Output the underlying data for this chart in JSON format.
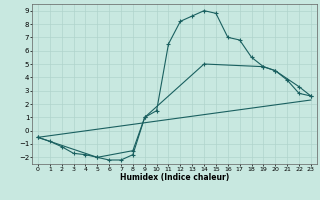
{
  "bg_color": "#c8e8e0",
  "grid_color": "#b0d4cc",
  "line_color": "#1a6060",
  "xlabel": "Humidex (Indice chaleur)",
  "xlim": [
    -0.5,
    23.5
  ],
  "ylim": [
    -2.5,
    9.5
  ],
  "yticks": [
    -2,
    -1,
    0,
    1,
    2,
    3,
    4,
    5,
    6,
    7,
    8,
    9
  ],
  "xticks": [
    0,
    1,
    2,
    3,
    4,
    5,
    6,
    7,
    8,
    9,
    10,
    11,
    12,
    13,
    14,
    15,
    16,
    17,
    18,
    19,
    20,
    21,
    22,
    23
  ],
  "line1_x": [
    0,
    1,
    2,
    3,
    4,
    5,
    6,
    7,
    8,
    9,
    10,
    11,
    12,
    13,
    14,
    15,
    16,
    17,
    18,
    19,
    20,
    21,
    22,
    23
  ],
  "line1_y": [
    -0.5,
    -0.8,
    -1.2,
    -1.7,
    -1.8,
    -2.0,
    -2.2,
    -2.2,
    -1.8,
    1.0,
    1.5,
    6.5,
    8.2,
    8.6,
    9.0,
    8.8,
    7.0,
    6.8,
    5.5,
    4.8,
    4.5,
    3.8,
    2.8,
    2.6
  ],
  "line2_x": [
    0,
    5,
    8,
    9,
    14,
    19,
    20,
    22,
    23
  ],
  "line2_y": [
    -0.5,
    -2.0,
    -1.5,
    1.0,
    5.0,
    4.8,
    4.5,
    3.3,
    2.6
  ],
  "line3_x": [
    0,
    23
  ],
  "line3_y": [
    -0.5,
    2.3
  ]
}
